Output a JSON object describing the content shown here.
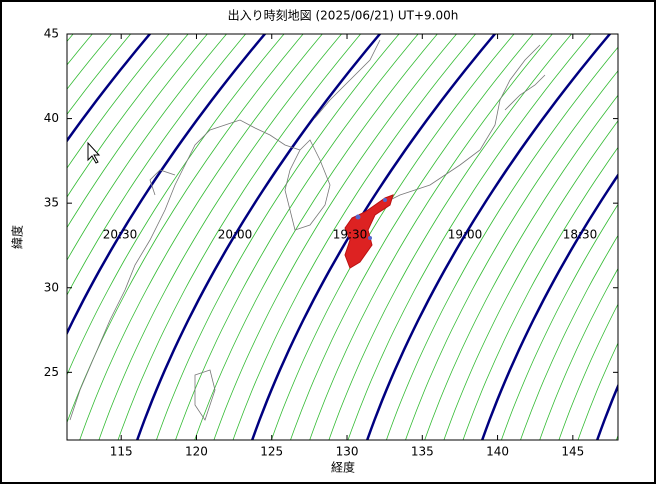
{
  "chart_data": {
    "type": "contour",
    "title": "出入り時刻地図 (2025/06/21) UT+9.00h",
    "x_label": "経度",
    "y_label": "緯度",
    "xlim": [
      111.4,
      148
    ],
    "ylim": [
      21,
      45
    ],
    "xticks": [
      115,
      120,
      125,
      130,
      135,
      140,
      145
    ],
    "yticks": [
      25,
      30,
      35,
      40,
      45
    ],
    "contour_labels": [
      "20:30",
      "20:00",
      "19:30",
      "19:00",
      "18:30"
    ],
    "major_color": "#000080",
    "minor_color": "#33bb33"
  }
}
